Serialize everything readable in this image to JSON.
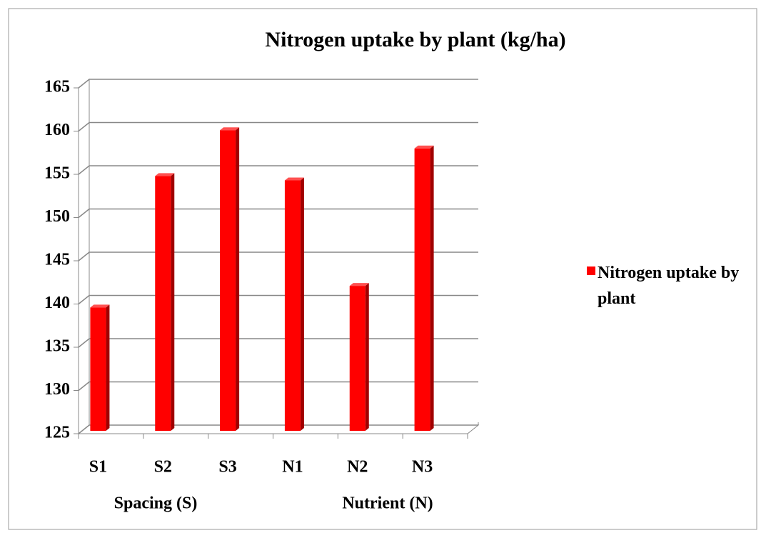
{
  "chart_data": {
    "type": "bar",
    "title": "Nitrogen uptake by plant (kg/ha)",
    "categories": [
      "S1",
      "S2",
      "S3",
      "N1",
      "N2",
      "N3"
    ],
    "group_labels": [
      "Spacing (S)",
      "Nutrient (N)"
    ],
    "series": [
      {
        "name": "Nitrogen uptake by plant",
        "color": "#ff0000",
        "values": [
          139.6,
          154.8,
          160.1,
          154.3,
          142.1,
          158.0
        ]
      }
    ],
    "ylim": [
      125,
      165
    ],
    "yticks": [
      125,
      130,
      135,
      140,
      145,
      150,
      155,
      160,
      165
    ],
    "grid": true,
    "legend": "right"
  }
}
